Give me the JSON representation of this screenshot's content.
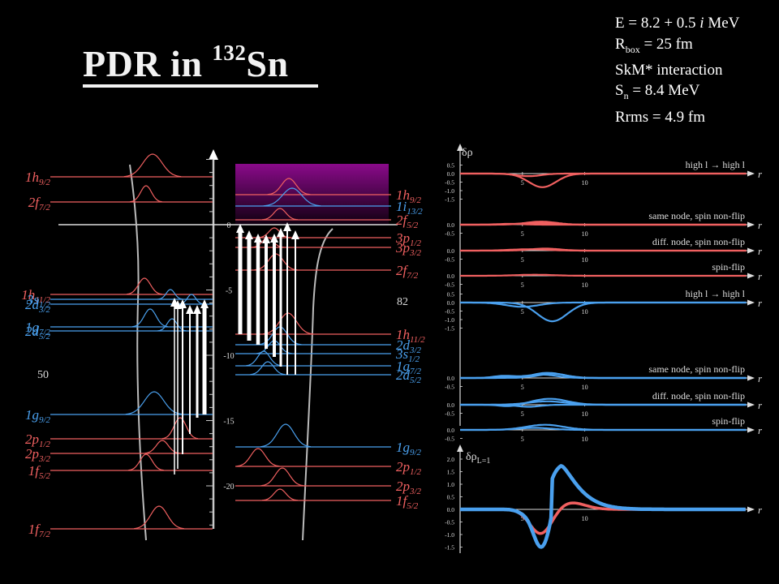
{
  "title": {
    "prefix": "PDR in ",
    "mass": "132",
    "element": "Sn"
  },
  "params": {
    "energy": {
      "prefix": "E = 8.2 + 0.5 ",
      "italic": "i",
      "suffix": " MeV"
    },
    "rbox": {
      "symbol": "R",
      "sub": "box",
      "suffix": " = 25 fm"
    },
    "interaction": "SkM* interaction",
    "sn": {
      "symbol": "S",
      "sub": "n",
      "suffix": " = 8.4 MeV"
    },
    "rrms": "Rrms = 4.9 fm"
  },
  "colors": {
    "neutron": "#4aa0ee",
    "proton": "#f06060",
    "continuum_top": "#8a0a8a",
    "axis": "#c8c8c8"
  },
  "energy_axis": {
    "ticks": [
      "0",
      "-5",
      "-10",
      "-15",
      "-20"
    ],
    "tick_values": [
      0,
      -5,
      -10,
      -15,
      -20
    ]
  },
  "magic_numbers": {
    "proton": "50",
    "neutron": "82"
  },
  "proton_levels": [
    {
      "label": "1h",
      "sub": "9/2",
      "energy": 5.4
    },
    {
      "label": "2f",
      "sub": "7/2",
      "energy": 2.3
    },
    {
      "label": "1h",
      "sub": "11/2",
      "energy": -6.9
    },
    {
      "label": "3s",
      "sub": "1/2",
      "energy": -7.6
    },
    {
      "label": "2d",
      "sub": "3/2",
      "energy": -8.3
    },
    {
      "label": "1g",
      "sub": "7/2",
      "energy": -10.5
    },
    {
      "label": "2d",
      "sub": "5/2",
      "energy": -11.1
    },
    {
      "label": "1g",
      "sub": "9/2",
      "energy": -15.3
    },
    {
      "label": "2p",
      "sub": "1/2",
      "energy": -17.4
    },
    {
      "label": "2p",
      "sub": "3/2",
      "energy": -18.6
    },
    {
      "label": "1f",
      "sub": "5/2",
      "energy": -20.0
    },
    {
      "label": "1f",
      "sub": "7/2",
      "energy": -24.2
    }
  ],
  "neutron_levels": [
    {
      "label": "1h",
      "sub": "9/2",
      "energy": 3.6
    },
    {
      "label": "1i",
      "sub": "13/2",
      "energy": 2.8
    },
    {
      "label": "2f",
      "sub": "5/2",
      "energy": 0.5
    },
    {
      "label": "3p",
      "sub": "1/2",
      "energy": -1.0
    },
    {
      "label": "3p",
      "sub": "3/2",
      "energy": -2.4
    },
    {
      "label": "2f",
      "sub": "7/2",
      "energy": -4.0
    },
    {
      "label": "1h",
      "sub": "11/2",
      "energy": -8.6
    },
    {
      "label": "2d",
      "sub": "3/2",
      "energy": -10.3
    },
    {
      "label": "3s",
      "sub": "1/2",
      "energy": -11.7
    },
    {
      "label": "1g",
      "sub": "7/2",
      "energy": -13.5
    },
    {
      "label": "2d",
      "sub": "5/2",
      "energy": -15.2
    },
    {
      "label": "1g",
      "sub": "9/2",
      "energy": -20.4
    },
    {
      "label": "2p",
      "sub": "1/2",
      "energy": -22.0
    },
    {
      "label": "2p",
      "sub": "3/2",
      "energy": -23.6
    },
    {
      "label": "1f",
      "sub": "5/2",
      "energy": -25.0
    }
  ],
  "density_panels": {
    "top_axis_label": "δρ",
    "bottom_axis_label": {
      "symbol": "δρ",
      "sub": "L=1"
    },
    "r_label": "r",
    "x_ticks": [
      "5",
      "10"
    ],
    "y_ticks_small": [
      "0.5",
      "0.0",
      "-0.5",
      "-1.0",
      "-1.5"
    ],
    "y_ticks_big": [
      "2.0",
      "1.5",
      "1.0",
      "0.5",
      "0.0",
      "-0.5",
      "-1.0",
      "-1.5"
    ],
    "panels": [
      {
        "label": "high l → high l",
        "group": "proton"
      },
      {
        "label": "same node, spin non-flip",
        "group": "proton"
      },
      {
        "label": "diff. node, spin non-flip",
        "group": "proton"
      },
      {
        "label": "spin-flip",
        "group": "proton"
      },
      {
        "label": "high l → high l",
        "group": "neutron"
      },
      {
        "label": "same node, spin non-flip",
        "group": "neutron"
      },
      {
        "label": "diff. node, spin non-flip",
        "group": "neutron"
      },
      {
        "label": "spin-flip",
        "group": "neutron"
      }
    ]
  }
}
